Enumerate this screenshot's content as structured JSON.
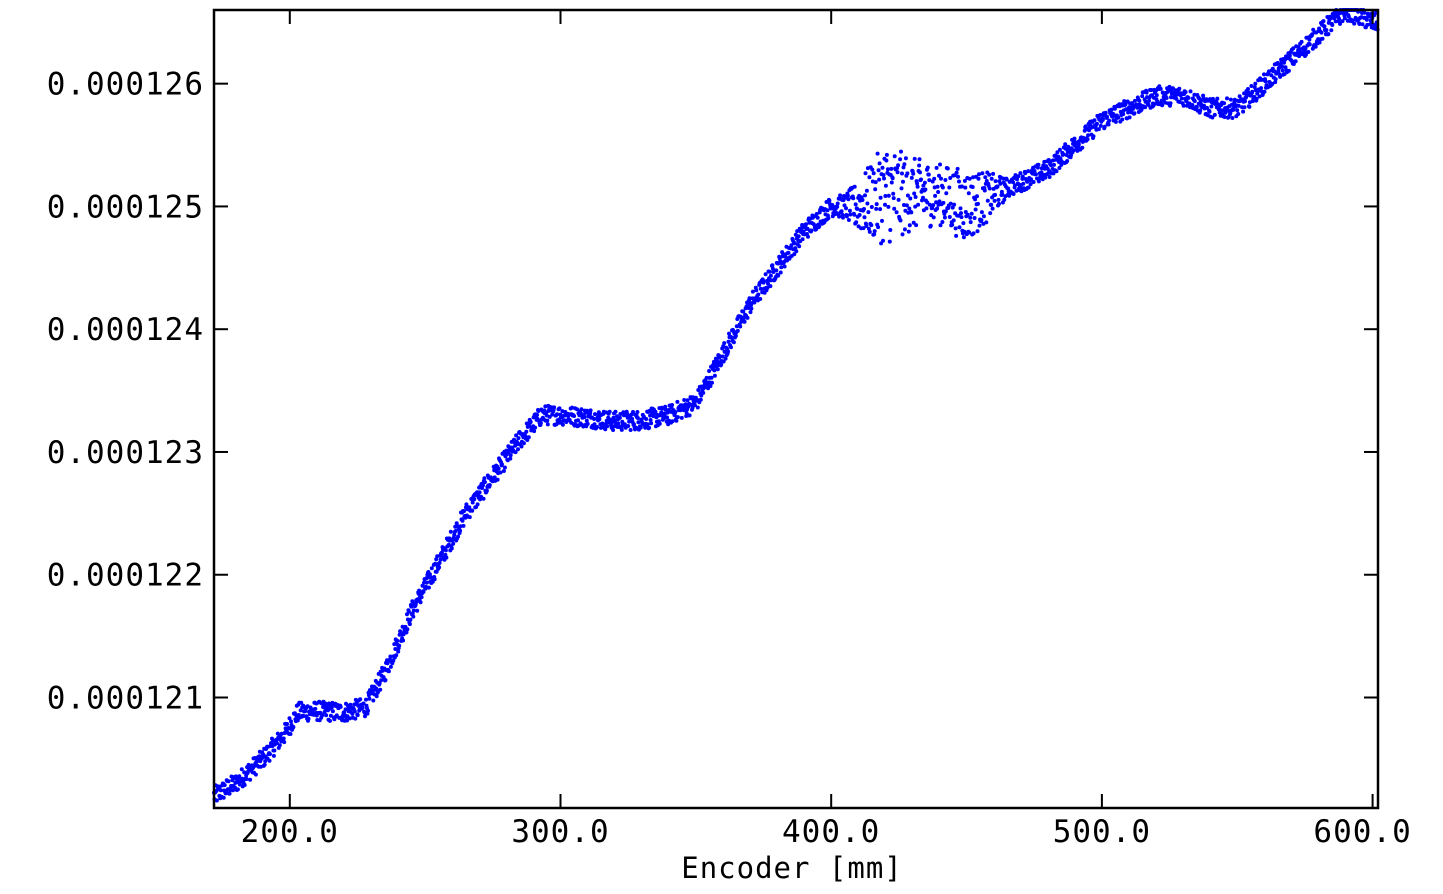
{
  "chart_data": {
    "type": "scatter",
    "title": "",
    "xlabel": "Encoder [mm]",
    "ylabel": "",
    "xlim": [
      172,
      602
    ],
    "ylim": [
      0.0001201,
      0.0001266
    ],
    "x_ticks": [
      200,
      300,
      400,
      500,
      600
    ],
    "x_tick_labels": [
      "200.0",
      "300.0",
      "400.0",
      "500.0",
      "600.0"
    ],
    "y_ticks": [
      0.000121,
      0.000122,
      0.000123,
      0.000124,
      0.000125,
      0.000126
    ],
    "y_tick_labels": [
      "0.000121",
      "0.000122",
      "0.000123",
      "0.000124",
      "0.000125",
      "0.000126"
    ],
    "grid": false,
    "legend": "none",
    "marker_color": "#0000ff",
    "series": [
      {
        "name": "",
        "trend": [
          [
            172,
            0.0001202
          ],
          [
            180,
            0.0001203
          ],
          [
            190,
            0.0001205
          ],
          [
            198,
            0.0001207
          ],
          [
            203,
            0.00012088
          ],
          [
            210,
            0.00012089
          ],
          [
            220,
            0.00012088
          ],
          [
            228,
            0.00012092
          ],
          [
            235,
            0.0001212
          ],
          [
            245,
            0.0001217
          ],
          [
            255,
            0.0001221
          ],
          [
            265,
            0.0001225
          ],
          [
            275,
            0.0001228
          ],
          [
            285,
            0.0001231
          ],
          [
            293,
            0.0001233
          ],
          [
            300,
            0.0001233
          ],
          [
            310,
            0.00012328
          ],
          [
            320,
            0.00012325
          ],
          [
            330,
            0.00012326
          ],
          [
            340,
            0.0001233
          ],
          [
            350,
            0.0001234
          ],
          [
            360,
            0.0001238
          ],
          [
            370,
            0.0001242
          ],
          [
            380,
            0.0001245
          ],
          [
            390,
            0.0001248
          ],
          [
            400,
            0.000125
          ],
          [
            410,
            0.000125
          ],
          [
            420,
            0.0001251
          ],
          [
            430,
            0.0001251
          ],
          [
            440,
            0.0001251
          ],
          [
            450,
            0.000125
          ],
          [
            460,
            0.0001251
          ],
          [
            470,
            0.0001252
          ],
          [
            480,
            0.0001253
          ],
          [
            490,
            0.0001255
          ],
          [
            500,
            0.0001257
          ],
          [
            510,
            0.0001258
          ],
          [
            520,
            0.0001259
          ],
          [
            530,
            0.0001259
          ],
          [
            540,
            0.0001258
          ],
          [
            550,
            0.0001258
          ],
          [
            560,
            0.000126
          ],
          [
            570,
            0.0001262
          ],
          [
            580,
            0.0001264
          ],
          [
            590,
            0.0001266
          ],
          [
            600,
            0.0001265
          ]
        ],
        "spread": [
          [
            172,
            8e-08
          ],
          [
            400,
            8e-08
          ],
          [
            405,
            1e-07
          ],
          [
            412,
            2.5e-07
          ],
          [
            420,
            4.2e-07
          ],
          [
            430,
            3e-07
          ],
          [
            440,
            2.5e-07
          ],
          [
            450,
            3e-07
          ],
          [
            458,
            2e-07
          ],
          [
            465,
            8e-08
          ],
          [
            602,
            8e-08
          ]
        ]
      }
    ]
  }
}
